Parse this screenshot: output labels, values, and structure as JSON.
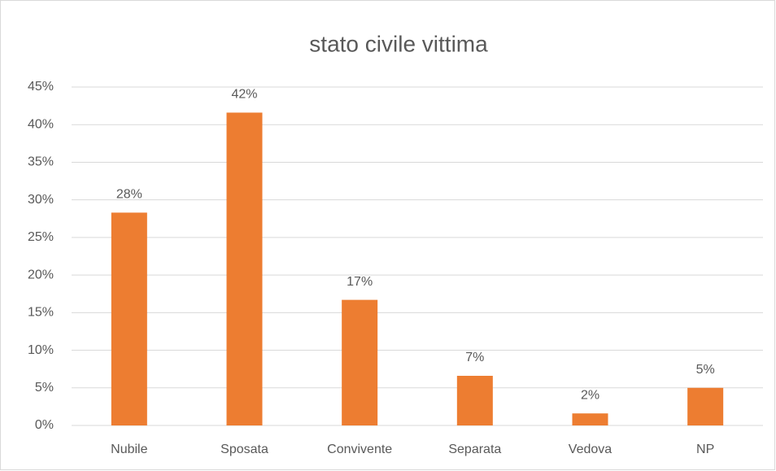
{
  "chart_data": {
    "type": "bar",
    "title": "stato civile vittima",
    "categories": [
      "Nubile",
      "Sposata",
      "Convivente",
      "Separata",
      "Vedova",
      "NP"
    ],
    "values": [
      28.3,
      41.6,
      16.7,
      6.6,
      1.6,
      5.0
    ],
    "value_labels": [
      "28%",
      "42%",
      "17%",
      "7%",
      "2%",
      "5%"
    ],
    "color": "#ed7d31",
    "ylim": [
      0,
      45
    ],
    "yticks": [
      {
        "value": 0,
        "label": "0%"
      },
      {
        "value": 5,
        "label": "5%"
      },
      {
        "value": 10,
        "label": "10%"
      },
      {
        "value": 15,
        "label": "15%"
      },
      {
        "value": 20,
        "label": "20%"
      },
      {
        "value": 25,
        "label": "25%"
      },
      {
        "value": 30,
        "label": "30%"
      },
      {
        "value": 35,
        "label": "35%"
      },
      {
        "value": 40,
        "label": "40%"
      },
      {
        "value": 45,
        "label": "45%"
      }
    ],
    "grid": true
  }
}
